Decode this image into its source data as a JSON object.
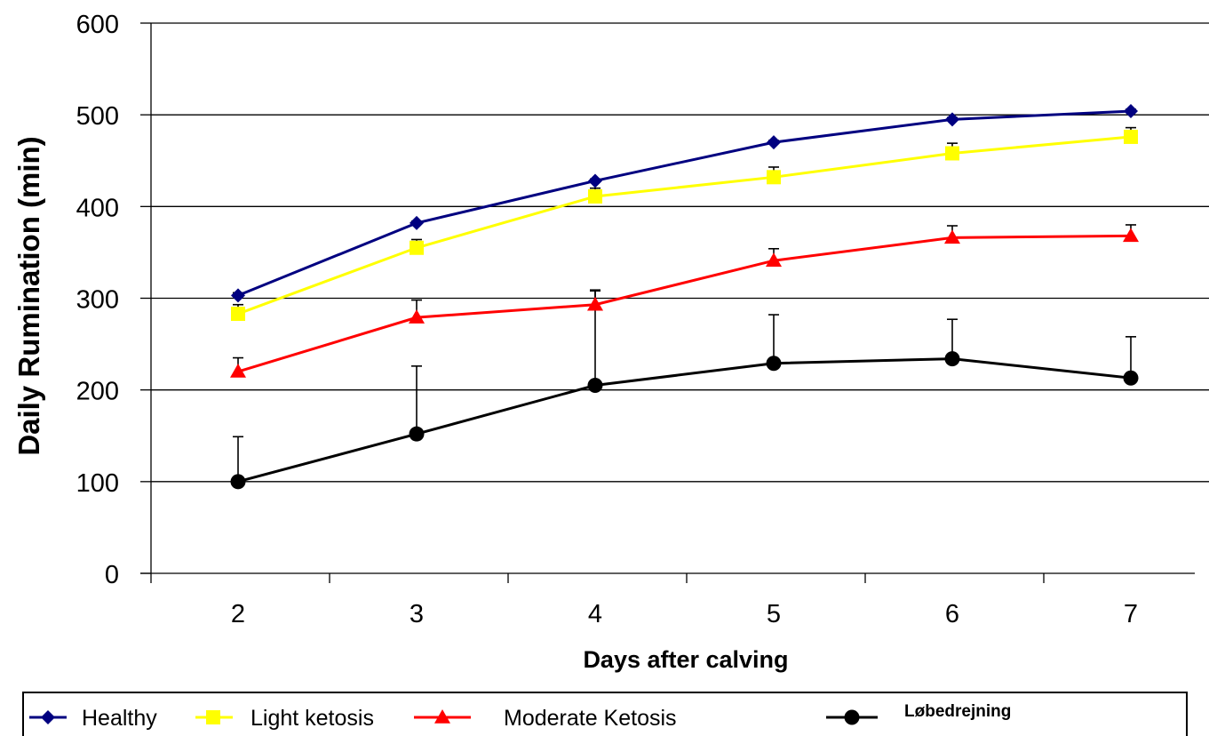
{
  "chart_data": {
    "type": "line",
    "xlabel": "Days after calving",
    "ylabel": "Daily Rumination (min)",
    "x": [
      2,
      3,
      4,
      5,
      6,
      7
    ],
    "ylim": [
      0,
      600
    ],
    "yticks": [
      0,
      100,
      200,
      300,
      400,
      500,
      600
    ],
    "grid": "horizontal",
    "legend_position": "bottom",
    "series": [
      {
        "name": "Healthy",
        "color": "#000080",
        "marker": "diamond",
        "values": [
          303,
          382,
          428,
          470,
          495,
          504
        ],
        "error_upper": [
          306,
          384,
          430,
          472,
          497,
          506
        ]
      },
      {
        "name": "Light ketosis",
        "color": "#FFFF00",
        "marker": "square",
        "values": [
          283,
          355,
          411,
          432,
          458,
          476
        ],
        "error_upper": [
          293,
          364,
          420,
          443,
          469,
          486
        ]
      },
      {
        "name": "Moderate Ketosis",
        "color": "#FF0000",
        "marker": "triangle",
        "values": [
          220,
          279,
          293,
          341,
          366,
          368
        ],
        "error_upper": [
          235,
          298,
          309,
          354,
          379,
          380
        ]
      },
      {
        "name": "Løbedrejning",
        "color": "#000000",
        "marker": "circle",
        "values": [
          100,
          152,
          205,
          229,
          234,
          213
        ],
        "error_upper": [
          149,
          226,
          308,
          282,
          277,
          258
        ]
      }
    ]
  }
}
